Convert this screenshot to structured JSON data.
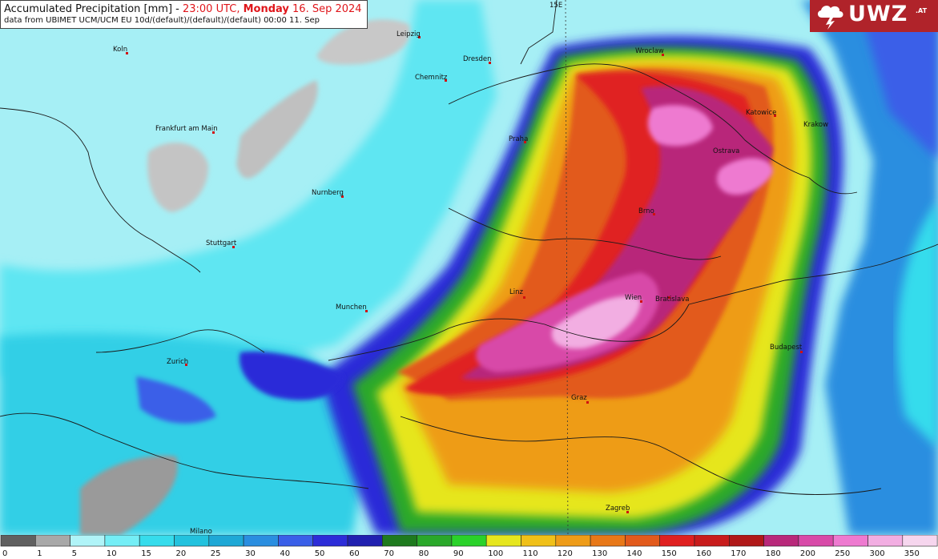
{
  "header": {
    "title_prefix": "Accumulated Precipitation [mm] - ",
    "title_time": "23:00 UTC, ",
    "title_day": "Monday",
    "title_date": " 16. Sep 2024",
    "subtitle": "data from UBIMET UCM/UCM EU 10d/(default)/(default)/(default) 00:00 11. Sep"
  },
  "logo": {
    "text": "UWZ",
    "suffix": ".AT"
  },
  "meridian_label": "15E",
  "cities": [
    {
      "name": "Leipzig",
      "id": "leipzig"
    },
    {
      "name": "Dresden",
      "id": "dresden"
    },
    {
      "name": "Chemnitz",
      "id": "chemnitz"
    },
    {
      "name": "Koln",
      "id": "koln"
    },
    {
      "name": "Frankfurt am Main",
      "id": "frankfurt"
    },
    {
      "name": "Nurnberg",
      "id": "nurnberg"
    },
    {
      "name": "Stuttgart",
      "id": "stuttgart"
    },
    {
      "name": "Munchen",
      "id": "munchen"
    },
    {
      "name": "Zurich",
      "id": "zurich"
    },
    {
      "name": "Milano",
      "id": "milano"
    },
    {
      "name": "Praha",
      "id": "praha"
    },
    {
      "name": "Wroclaw",
      "id": "wroclaw"
    },
    {
      "name": "Katowice",
      "id": "katowice"
    },
    {
      "name": "Krakow",
      "id": "krakow"
    },
    {
      "name": "Ostrava",
      "id": "ostrava"
    },
    {
      "name": "Brno",
      "id": "brno"
    },
    {
      "name": "Linz",
      "id": "linz"
    },
    {
      "name": "Wien",
      "id": "wien"
    },
    {
      "name": "Bratislava",
      "id": "bratislava"
    },
    {
      "name": "Budapest",
      "id": "budapest"
    },
    {
      "name": "Graz",
      "id": "graz"
    },
    {
      "name": "Zagreb",
      "id": "zagreb"
    }
  ],
  "legend": {
    "ticks": [
      "0",
      "1",
      "5",
      "10",
      "15",
      "20",
      "25",
      "30",
      "40",
      "50",
      "60",
      "70",
      "80",
      "90",
      "100",
      "110",
      "120",
      "130",
      "140",
      "150",
      "160",
      "170",
      "180",
      "200",
      "250",
      "300",
      "350"
    ],
    "colors": [
      "#606060",
      "#a8a8a8",
      "#b0f4f8",
      "#74eef6",
      "#36dcec",
      "#22c2de",
      "#1ea8d6",
      "#2a8ee0",
      "#3a5fe8",
      "#2c2cd8",
      "#2020b0",
      "#1e7a1e",
      "#2aa82a",
      "#2ad22a",
      "#e6e61e",
      "#f0c018",
      "#ee9c18",
      "#e87818",
      "#e25a1c",
      "#e02020",
      "#c81c1c",
      "#b01818",
      "#b8287a",
      "#d84aa8",
      "#ee7ad0",
      "#f2aee2",
      "#f6d6ee"
    ]
  }
}
